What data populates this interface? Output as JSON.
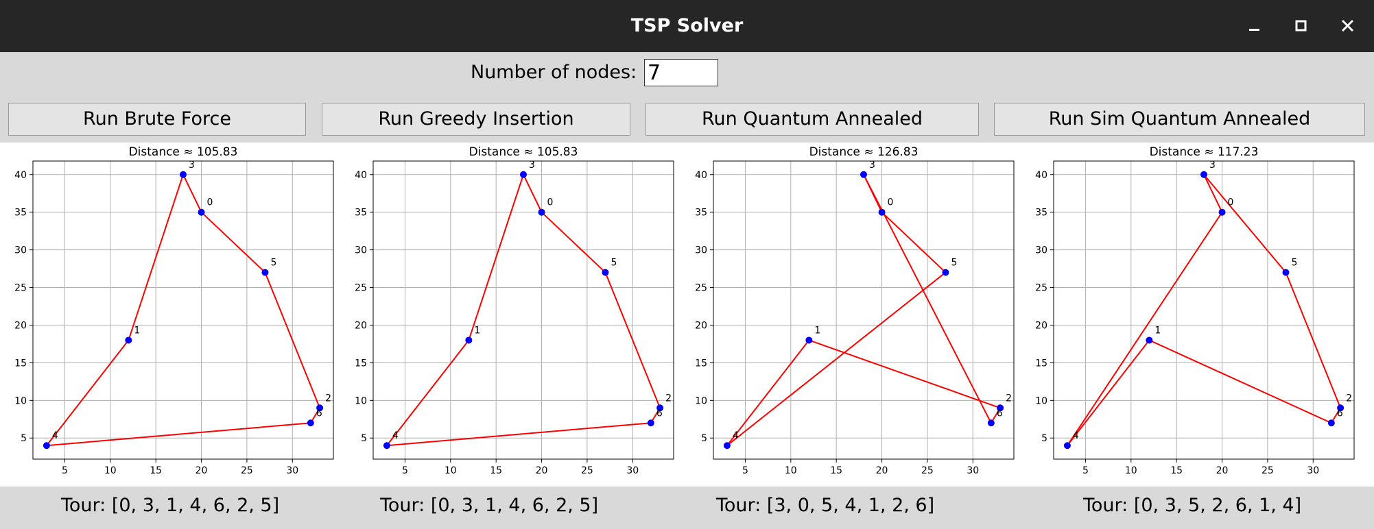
{
  "window": {
    "title": "TSP Solver"
  },
  "controls": {
    "nodes_label": "Number of nodes:",
    "nodes_value": "7",
    "buttons": [
      "Run Brute Force",
      "Run Greedy Insertion",
      "Run Quantum Annealed",
      "Run Sim Quantum Annealed"
    ]
  },
  "colors": {
    "edge": "#ff0000",
    "node": "#0000ff"
  },
  "chart_data": [
    {
      "type": "line",
      "title": "Distance ≈ 105.83",
      "nodes": [
        {
          "id": "0",
          "x": 20,
          "y": 35
        },
        {
          "id": "1",
          "x": 12,
          "y": 18
        },
        {
          "id": "2",
          "x": 33,
          "y": 9
        },
        {
          "id": "3",
          "x": 18,
          "y": 40
        },
        {
          "id": "4",
          "x": 3,
          "y": 4
        },
        {
          "id": "5",
          "x": 27,
          "y": 27
        },
        {
          "id": "6",
          "x": 32,
          "y": 7
        }
      ],
      "tour": [
        0,
        3,
        1,
        4,
        6,
        2,
        5
      ],
      "xlim": [
        1.5,
        34.5
      ],
      "ylim": [
        2.2,
        41.8
      ],
      "xticks": [
        5,
        10,
        15,
        20,
        25,
        30
      ],
      "yticks": [
        5,
        10,
        15,
        20,
        25,
        30,
        35,
        40
      ],
      "grid": true,
      "tour_label": "Tour: [0, 3, 1, 4, 6, 2, 5]"
    },
    {
      "type": "line",
      "title": "Distance ≈ 105.83",
      "nodes": [
        {
          "id": "0",
          "x": 20,
          "y": 35
        },
        {
          "id": "1",
          "x": 12,
          "y": 18
        },
        {
          "id": "2",
          "x": 33,
          "y": 9
        },
        {
          "id": "3",
          "x": 18,
          "y": 40
        },
        {
          "id": "4",
          "x": 3,
          "y": 4
        },
        {
          "id": "5",
          "x": 27,
          "y": 27
        },
        {
          "id": "6",
          "x": 32,
          "y": 7
        }
      ],
      "tour": [
        0,
        3,
        1,
        4,
        6,
        2,
        5
      ],
      "xlim": [
        1.5,
        34.5
      ],
      "ylim": [
        2.2,
        41.8
      ],
      "xticks": [
        5,
        10,
        15,
        20,
        25,
        30
      ],
      "yticks": [
        5,
        10,
        15,
        20,
        25,
        30,
        35,
        40
      ],
      "grid": true,
      "tour_label": "Tour: [0, 3, 1, 4, 6, 2, 5]"
    },
    {
      "type": "line",
      "title": "Distance ≈ 126.83",
      "nodes": [
        {
          "id": "0",
          "x": 20,
          "y": 35
        },
        {
          "id": "1",
          "x": 12,
          "y": 18
        },
        {
          "id": "2",
          "x": 33,
          "y": 9
        },
        {
          "id": "3",
          "x": 18,
          "y": 40
        },
        {
          "id": "4",
          "x": 3,
          "y": 4
        },
        {
          "id": "5",
          "x": 27,
          "y": 27
        },
        {
          "id": "6",
          "x": 32,
          "y": 7
        }
      ],
      "tour": [
        3,
        0,
        5,
        4,
        1,
        2,
        6
      ],
      "xlim": [
        1.5,
        34.5
      ],
      "ylim": [
        2.2,
        41.8
      ],
      "xticks": [
        5,
        10,
        15,
        20,
        25,
        30
      ],
      "yticks": [
        5,
        10,
        15,
        20,
        25,
        30,
        35,
        40
      ],
      "grid": true,
      "tour_label": "Tour: [3, 0, 5, 4, 1, 2, 6]"
    },
    {
      "type": "line",
      "title": "Distance ≈ 117.23",
      "nodes": [
        {
          "id": "0",
          "x": 20,
          "y": 35
        },
        {
          "id": "1",
          "x": 12,
          "y": 18
        },
        {
          "id": "2",
          "x": 33,
          "y": 9
        },
        {
          "id": "3",
          "x": 18,
          "y": 40
        },
        {
          "id": "4",
          "x": 3,
          "y": 4
        },
        {
          "id": "5",
          "x": 27,
          "y": 27
        },
        {
          "id": "6",
          "x": 32,
          "y": 7
        }
      ],
      "tour": [
        0,
        3,
        5,
        2,
        6,
        1,
        4
      ],
      "xlim": [
        1.5,
        34.5
      ],
      "ylim": [
        2.2,
        41.8
      ],
      "xticks": [
        5,
        10,
        15,
        20,
        25,
        30
      ],
      "yticks": [
        5,
        10,
        15,
        20,
        25,
        30,
        35,
        40
      ],
      "grid": true,
      "tour_label": "Tour: [0, 3, 5, 2, 6, 1, 4]"
    }
  ]
}
